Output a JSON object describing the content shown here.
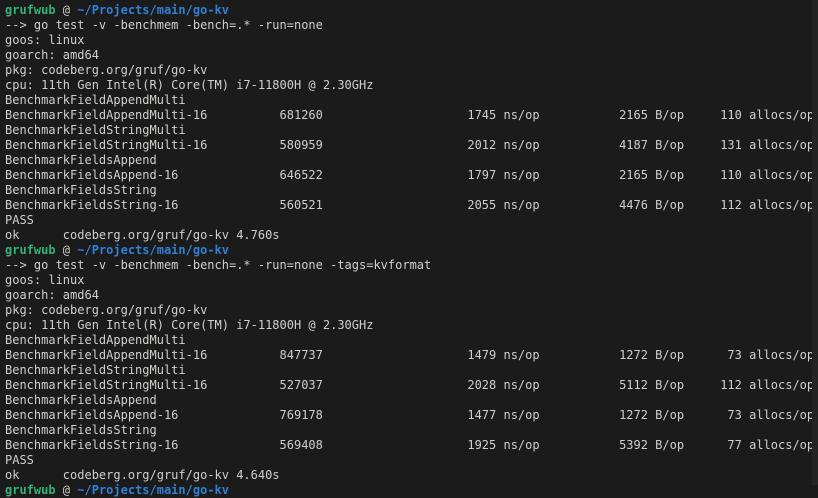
{
  "terminal": {
    "colors": {
      "background": "#1b1b1b",
      "foreground": "#d0cfcc",
      "prompt_user_green": "#2eb477",
      "prompt_path_blue": "#2f81d7",
      "scrollbar": "#242424"
    },
    "prompt": {
      "user": "grufwub",
      "separator": " @ ",
      "path": "~/Projects/main/go-kv"
    },
    "blocks": [
      {
        "command": "--> go test -v -benchmem -bench=.* -run=none",
        "env": [
          "goos: linux",
          "goarch: amd64",
          "pkg: codeberg.org/gruf/go-kv",
          "cpu: 11th Gen Intel(R) Core(TM) i7-11800H @ 2.30GHz"
        ],
        "benchmarks": [
          {
            "group": "BenchmarkFieldAppendMulti",
            "name": "BenchmarkFieldAppendMulti-16",
            "iterations": "681260",
            "ns_per_op": "1745 ns/op",
            "bytes_per_op": "2165 B/op",
            "allocs_per_op": "110 allocs/op"
          },
          {
            "group": "BenchmarkFieldStringMulti",
            "name": "BenchmarkFieldStringMulti-16",
            "iterations": "580959",
            "ns_per_op": "2012 ns/op",
            "bytes_per_op": "4187 B/op",
            "allocs_per_op": "131 allocs/op"
          },
          {
            "group": "BenchmarkFieldsAppend",
            "name": "BenchmarkFieldsAppend-16",
            "iterations": "646522",
            "ns_per_op": "1797 ns/op",
            "bytes_per_op": "2165 B/op",
            "allocs_per_op": "110 allocs/op"
          },
          {
            "group": "BenchmarkFieldsString",
            "name": "BenchmarkFieldsString-16",
            "iterations": "560521",
            "ns_per_op": "2055 ns/op",
            "bytes_per_op": "4476 B/op",
            "allocs_per_op": "112 allocs/op"
          }
        ],
        "status": "PASS",
        "result": "ok      codeberg.org/gruf/go-kv 4.760s"
      },
      {
        "command": "--> go test -v -benchmem -bench=.* -run=none -tags=kvformat",
        "env": [
          "goos: linux",
          "goarch: amd64",
          "pkg: codeberg.org/gruf/go-kv",
          "cpu: 11th Gen Intel(R) Core(TM) i7-11800H @ 2.30GHz"
        ],
        "benchmarks": [
          {
            "group": "BenchmarkFieldAppendMulti",
            "name": "BenchmarkFieldAppendMulti-16",
            "iterations": "847737",
            "ns_per_op": "1479 ns/op",
            "bytes_per_op": "1272 B/op",
            "allocs_per_op": "73 allocs/op"
          },
          {
            "group": "BenchmarkFieldStringMulti",
            "name": "BenchmarkFieldStringMulti-16",
            "iterations": "527037",
            "ns_per_op": "2028 ns/op",
            "bytes_per_op": "5112 B/op",
            "allocs_per_op": "112 allocs/op"
          },
          {
            "group": "BenchmarkFieldsAppend",
            "name": "BenchmarkFieldsAppend-16",
            "iterations": "769178",
            "ns_per_op": "1477 ns/op",
            "bytes_per_op": "1272 B/op",
            "allocs_per_op": "73 allocs/op"
          },
          {
            "group": "BenchmarkFieldsString",
            "name": "BenchmarkFieldsString-16",
            "iterations": "569408",
            "ns_per_op": "1925 ns/op",
            "bytes_per_op": "5392 B/op",
            "allocs_per_op": "77 allocs/op"
          }
        ],
        "status": "PASS",
        "result": "ok      codeberg.org/gruf/go-kv 4.640s"
      }
    ]
  }
}
